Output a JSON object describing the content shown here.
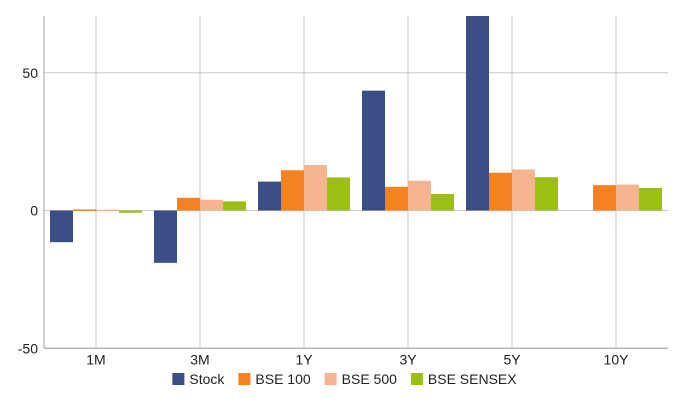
{
  "chart_data": {
    "type": "bar",
    "categories": [
      "1M",
      "3M",
      "1Y",
      "3Y",
      "5Y",
      "10Y"
    ],
    "series": [
      {
        "name": "Stock",
        "color": "#3b4f86",
        "values": [
          -11.5,
          -19.0,
          10.5,
          43.5,
          70.6,
          null
        ]
      },
      {
        "name": "BSE 100",
        "color": "#f58220",
        "values": [
          0.4,
          4.6,
          14.6,
          8.6,
          13.7,
          9.2
        ]
      },
      {
        "name": "BSE 500",
        "color": "#f4b48f",
        "values": [
          0.3,
          3.9,
          16.5,
          10.8,
          14.9,
          9.4
        ]
      },
      {
        "name": "BSE SENSEX",
        "color": "#9bbf16",
        "values": [
          -0.8,
          3.3,
          12.0,
          6.0,
          12.1,
          8.2
        ]
      }
    ],
    "yticks": [
      -50,
      0,
      50
    ],
    "ylim": [
      -50,
      70
    ],
    "grid": true,
    "legend_position": "bottom-center",
    "title": "",
    "xlabel": "",
    "ylabel": ""
  }
}
